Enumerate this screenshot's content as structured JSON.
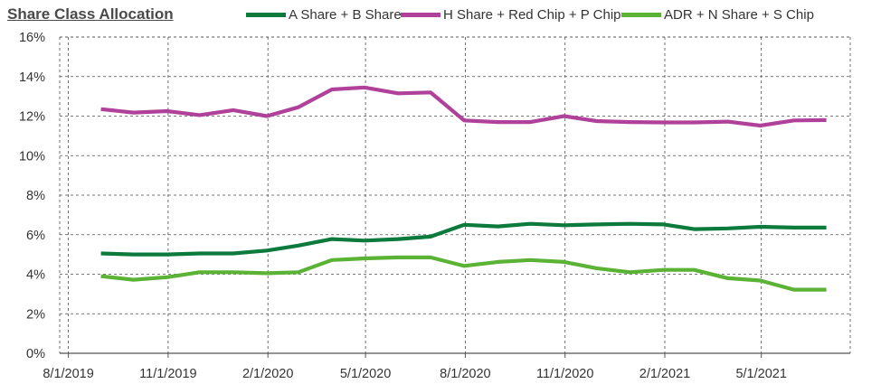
{
  "chart_data": {
    "type": "line",
    "title": "Share Class Allocation",
    "xlabel": "",
    "ylabel": "",
    "ylim": [
      0,
      16
    ],
    "yticks": [
      "0%",
      "2%",
      "4%",
      "6%",
      "8%",
      "10%",
      "12%",
      "14%",
      "16%"
    ],
    "xticks": [
      "8/1/2019",
      "11/1/2019",
      "2/1/2020",
      "5/1/2020",
      "8/1/2020",
      "11/1/2020",
      "2/1/2021",
      "5/1/2021"
    ],
    "grid": true,
    "legend_position": "top",
    "x": [
      "2019-08-31",
      "2019-09-30",
      "2019-10-31",
      "2019-11-30",
      "2019-12-31",
      "2020-01-31",
      "2020-02-29",
      "2020-03-31",
      "2020-04-30",
      "2020-05-31",
      "2020-06-30",
      "2020-07-31",
      "2020-08-31",
      "2020-09-30",
      "2020-10-31",
      "2020-11-30",
      "2020-12-31",
      "2021-01-31",
      "2021-02-28",
      "2021-03-31",
      "2021-04-30",
      "2021-05-31",
      "2021-06-30"
    ],
    "series": [
      {
        "name": "A Share + B Share",
        "color": "#0c7a3c",
        "values": [
          5.05,
          5.0,
          5.0,
          5.05,
          5.05,
          5.2,
          5.45,
          5.78,
          5.7,
          5.78,
          5.9,
          6.5,
          6.42,
          6.55,
          6.48,
          6.52,
          6.55,
          6.52,
          6.28,
          6.32,
          6.4,
          6.36,
          6.36
        ]
      },
      {
        "name": "H Share + Red Chip + P Chip",
        "color": "#b0419a",
        "values": [
          12.35,
          12.18,
          12.25,
          12.05,
          12.3,
          12.0,
          12.45,
          13.35,
          13.45,
          13.15,
          13.2,
          11.78,
          11.7,
          11.7,
          12.0,
          11.75,
          11.7,
          11.68,
          11.68,
          11.72,
          11.52,
          11.78,
          11.8
        ]
      },
      {
        "name": "ADR + N Share + S Chip",
        "color": "#5bb335",
        "values": [
          3.9,
          3.72,
          3.85,
          4.1,
          4.1,
          4.05,
          4.1,
          4.72,
          4.8,
          4.85,
          4.85,
          4.42,
          4.62,
          4.72,
          4.62,
          4.3,
          4.1,
          4.22,
          4.22,
          3.8,
          3.68,
          3.22,
          3.22
        ]
      }
    ]
  }
}
